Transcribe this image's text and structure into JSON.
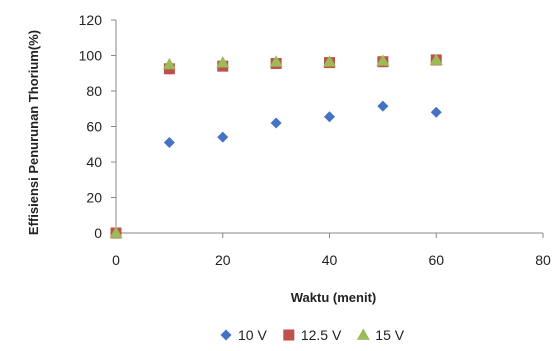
{
  "chart_data": {
    "type": "scatter",
    "title": "",
    "xlabel": "Waktu (menit)",
    "ylabel": "Effisiensi Penurunan Thorium(%)",
    "xlim": [
      0,
      80
    ],
    "ylim": [
      0,
      120
    ],
    "xticks": [
      0,
      20,
      40,
      60,
      80
    ],
    "yticks": [
      0,
      20,
      40,
      60,
      80,
      100,
      120
    ],
    "grid": false,
    "legend_position": "bottom",
    "series": [
      {
        "name": "10 V",
        "marker": "diamond",
        "color": "#4472C4",
        "x": [
          0,
          10,
          20,
          30,
          40,
          50,
          60
        ],
        "y": [
          0,
          51,
          54,
          62,
          65.5,
          71.5,
          68
        ]
      },
      {
        "name": "12.5 V",
        "marker": "square",
        "color": "#C0504D",
        "x": [
          0,
          10,
          20,
          30,
          40,
          50,
          60
        ],
        "y": [
          0,
          92.5,
          94,
          95.5,
          96,
          96.5,
          97.5
        ]
      },
      {
        "name": "15 V",
        "marker": "triangle",
        "color": "#9BBB59",
        "x": [
          0,
          10,
          20,
          30,
          40,
          50,
          60
        ],
        "y": [
          0,
          95,
          96,
          96.5,
          96.5,
          97,
          97.5
        ]
      }
    ]
  }
}
